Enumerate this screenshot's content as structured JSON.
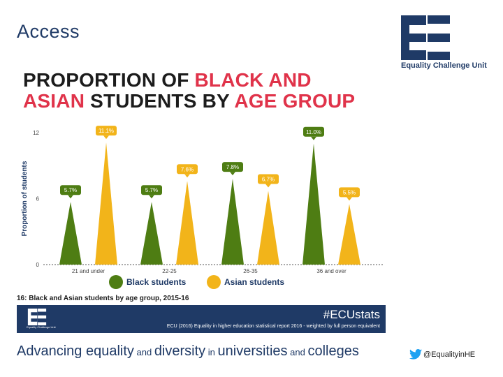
{
  "page_title": "Access",
  "logo": {
    "text": "Equality Challenge Unit"
  },
  "heading": {
    "line1_dark": "PROPORTION OF ",
    "line1_red": "BLACK AND",
    "line2_red_a": "ASIAN",
    "line2_dark": " STUDENTS BY ",
    "line2_red_b": "AGE GROUP"
  },
  "colors": {
    "black_students": "#4e7d13",
    "asian_students": "#f2b41a",
    "navy": "#1f3a66",
    "red": "#e0334a"
  },
  "chart_data": {
    "type": "bar",
    "ylabel": "Proportion of students",
    "ylim": [
      0,
      12
    ],
    "yticks": [
      "0",
      "6",
      "12"
    ],
    "categories": [
      "21 and under",
      "22-25",
      "26-35",
      "36 and over"
    ],
    "series": [
      {
        "name": "Black students",
        "values": [
          5.7,
          5.7,
          7.8,
          11.0
        ],
        "labels": [
          "5.7%",
          "5.7%",
          "7.8%",
          "11.0%"
        ]
      },
      {
        "name": "Asian students",
        "values": [
          11.1,
          7.6,
          6.7,
          5.5
        ],
        "labels": [
          "11.1%",
          "7.6%",
          "6.7%",
          "5.5%"
        ]
      }
    ],
    "legend": "bottom",
    "grid": false
  },
  "caption": "16: Black and Asian students by age group, 2015-16",
  "banner": {
    "hashtag": "#ECUstats",
    "credit": "ECU (2016) Equality in higher education statistical report 2016 - weighted by full person equivalent",
    "logo_text": "Equality Challenge Unit"
  },
  "tagline": {
    "w1": "Advancing equality",
    "and1": " and ",
    "w2": "diversity",
    "in": " in ",
    "w3": "universities",
    "and2": " and ",
    "w4": "colleges"
  },
  "twitter": {
    "handle": "@EqualityinHE"
  }
}
